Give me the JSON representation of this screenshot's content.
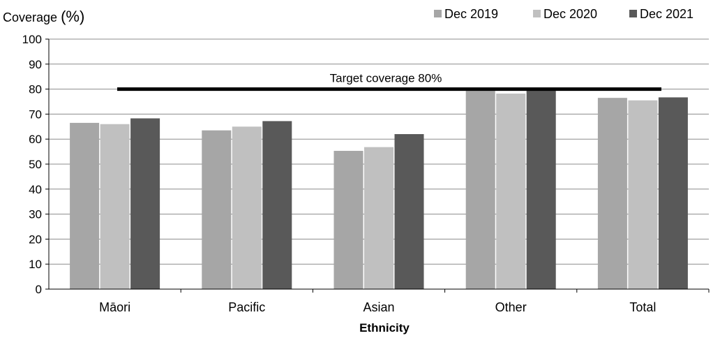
{
  "chart_data": {
    "type": "bar",
    "categories": [
      "Māori",
      "Pacific",
      "Asian",
      "Other",
      "Total"
    ],
    "series": [
      {
        "name": "Dec 2019",
        "color": "#a6a6a6",
        "values": [
          66.5,
          63.5,
          55.3,
          80.5,
          76.5
        ]
      },
      {
        "name": "Dec 2020",
        "color": "#c0c0c0",
        "values": [
          66.0,
          65.0,
          56.8,
          78.2,
          75.5
        ]
      },
      {
        "name": "Dec 2021",
        "color": "#595959",
        "values": [
          68.3,
          67.2,
          62.0,
          80.5,
          76.7
        ]
      }
    ],
    "ylabel": "Coverage",
    "ylabel_unit": "(%)",
    "xlabel": "Ethnicity",
    "ylim": [
      0,
      100
    ],
    "yticks": [
      "0",
      "10",
      "20",
      "30",
      "40",
      "50",
      "60",
      "70",
      "80",
      "90",
      "100"
    ],
    "grid": true,
    "legend_position": "top-right",
    "target": {
      "value": 80,
      "label": "Target coverage 80%"
    }
  }
}
